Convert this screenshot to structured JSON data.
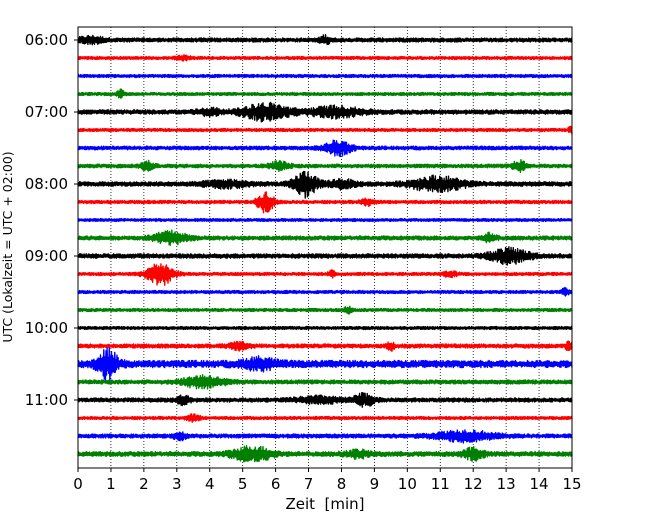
{
  "chart_data": {
    "type": "line",
    "title": "",
    "xlabel": "Zeit  [min]",
    "ylabel": "UTC (Lokalzeit = UTC + 02:00)",
    "xlim": [
      0,
      15
    ],
    "xticks": [
      "0",
      "1",
      "2",
      "3",
      "4",
      "5",
      "6",
      "7",
      "8",
      "9",
      "10",
      "11",
      "12",
      "13",
      "14",
      "15"
    ],
    "yticks": [
      "06:00",
      "07:00",
      "08:00",
      "09:00",
      "10:00",
      "11:00"
    ],
    "trace_interval_min": 15,
    "start_time": "06:00",
    "trace_count": 24,
    "grid": "vertical dotted at each minute",
    "trace_colors": [
      "#000000",
      "#ff0000",
      "#0000ff",
      "#008000"
    ],
    "traces": [
      {
        "time": "06:00",
        "base": 2.0,
        "events": [
          {
            "t": 0.4,
            "amp": 3,
            "w": 0.4
          },
          {
            "t": 7.5,
            "amp": 4,
            "w": 0.15
          }
        ]
      },
      {
        "time": "06:15",
        "base": 1.5,
        "events": [
          {
            "t": 3.2,
            "amp": 2,
            "w": 0.2
          }
        ]
      },
      {
        "time": "06:30",
        "base": 1.5,
        "events": []
      },
      {
        "time": "06:45",
        "base": 1.5,
        "events": [
          {
            "t": 1.3,
            "amp": 4,
            "w": 0.1
          }
        ]
      },
      {
        "time": "07:00",
        "base": 2.2,
        "events": [
          {
            "t": 4.0,
            "amp": 3,
            "w": 0.4
          },
          {
            "t": 5.7,
            "amp": 8,
            "w": 0.7
          },
          {
            "t": 7.8,
            "amp": 5,
            "w": 0.8
          }
        ]
      },
      {
        "time": "07:15",
        "base": 1.5,
        "events": [
          {
            "t": 15.0,
            "amp": 4,
            "w": 0.1
          }
        ]
      },
      {
        "time": "07:30",
        "base": 1.8,
        "events": [
          {
            "t": 7.9,
            "amp": 7,
            "w": 0.4
          }
        ]
      },
      {
        "time": "07:45",
        "base": 1.8,
        "events": [
          {
            "t": 2.1,
            "amp": 4,
            "w": 0.2
          },
          {
            "t": 6.1,
            "amp": 4,
            "w": 0.3
          },
          {
            "t": 13.4,
            "amp": 5,
            "w": 0.2
          }
        ]
      },
      {
        "time": "08:00",
        "base": 2.2,
        "events": [
          {
            "t": 4.5,
            "amp": 3,
            "w": 0.7
          },
          {
            "t": 6.9,
            "amp": 12,
            "w": 0.35
          },
          {
            "t": 8.0,
            "amp": 4,
            "w": 0.4
          },
          {
            "t": 10.9,
            "amp": 7,
            "w": 0.8
          }
        ]
      },
      {
        "time": "08:15",
        "base": 1.6,
        "events": [
          {
            "t": 5.7,
            "amp": 10,
            "w": 0.25
          },
          {
            "t": 8.8,
            "amp": 3,
            "w": 0.2
          }
        ]
      },
      {
        "time": "08:30",
        "base": 1.4,
        "events": []
      },
      {
        "time": "08:45",
        "base": 2.0,
        "events": [
          {
            "t": 2.8,
            "amp": 6,
            "w": 0.5
          },
          {
            "t": 12.5,
            "amp": 4,
            "w": 0.2
          }
        ]
      },
      {
        "time": "09:00",
        "base": 2.2,
        "events": [
          {
            "t": 13.1,
            "amp": 7,
            "w": 0.6
          }
        ]
      },
      {
        "time": "09:15",
        "base": 1.5,
        "events": [
          {
            "t": 2.5,
            "amp": 11,
            "w": 0.4
          },
          {
            "t": 7.7,
            "amp": 3,
            "w": 0.1
          },
          {
            "t": 11.3,
            "amp": 3,
            "w": 0.2
          }
        ]
      },
      {
        "time": "09:30",
        "base": 1.5,
        "events": [
          {
            "t": 14.8,
            "amp": 4,
            "w": 0.1
          }
        ]
      },
      {
        "time": "09:45",
        "base": 1.5,
        "events": [
          {
            "t": 8.2,
            "amp": 4,
            "w": 0.1
          }
        ]
      },
      {
        "time": "10:00",
        "base": 1.5,
        "events": []
      },
      {
        "time": "10:15",
        "base": 2.0,
        "events": [
          {
            "t": 4.9,
            "amp": 3,
            "w": 0.3
          },
          {
            "t": 9.5,
            "amp": 4,
            "w": 0.1
          },
          {
            "t": 14.9,
            "amp": 4,
            "w": 0.1
          }
        ]
      },
      {
        "time": "10:30",
        "base": 3.6,
        "events": [
          {
            "t": 0.9,
            "amp": 14,
            "w": 0.3
          },
          {
            "t": 5.5,
            "amp": 5,
            "w": 0.5
          }
        ]
      },
      {
        "time": "10:45",
        "base": 2.0,
        "events": [
          {
            "t": 3.8,
            "amp": 6,
            "w": 0.6
          }
        ]
      },
      {
        "time": "11:00",
        "base": 2.0,
        "events": [
          {
            "t": 3.2,
            "amp": 4,
            "w": 0.2
          },
          {
            "t": 7.3,
            "amp": 3,
            "w": 0.7
          },
          {
            "t": 8.7,
            "amp": 6,
            "w": 0.3
          }
        ]
      },
      {
        "time": "11:15",
        "base": 1.5,
        "events": [
          {
            "t": 3.5,
            "amp": 3,
            "w": 0.2
          }
        ]
      },
      {
        "time": "11:30",
        "base": 2.0,
        "events": [
          {
            "t": 11.7,
            "amp": 5,
            "w": 0.9
          },
          {
            "t": 3.1,
            "amp": 3,
            "w": 0.2
          }
        ]
      },
      {
        "time": "11:45",
        "base": 2.3,
        "events": [
          {
            "t": 5.3,
            "amp": 7,
            "w": 0.6
          },
          {
            "t": 12.0,
            "amp": 6,
            "w": 0.3
          },
          {
            "t": 8.5,
            "amp": 3,
            "w": 0.4
          }
        ]
      }
    ]
  }
}
